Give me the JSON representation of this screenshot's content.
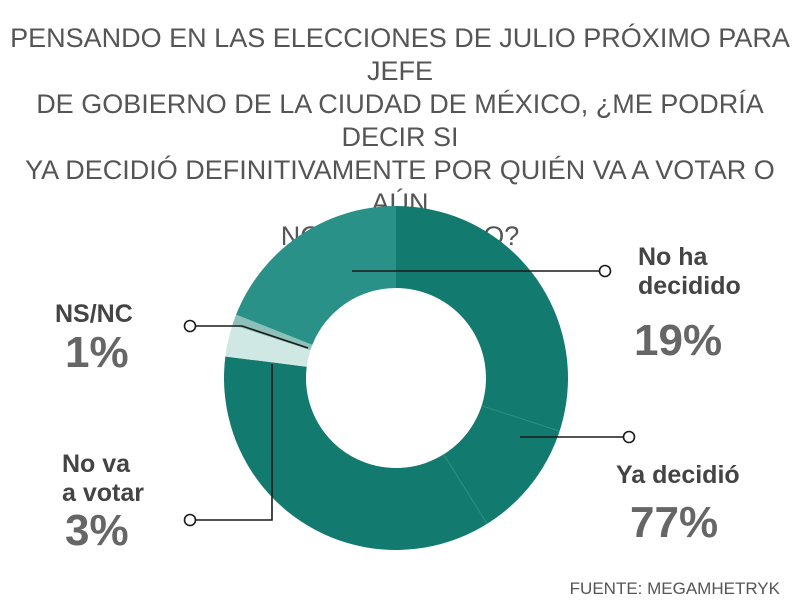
{
  "chart_data": {
    "type": "pie",
    "title": "PENSANDO EN LAS ELECCIONES DE JULIO PRÓXIMO PARA JEFE\nDE GOBIERNO DE LA CIUDAD DE MÉXICO, ¿ME PODRÍA DECIR SI\nYA DECIDIÓ DEFINITIVAMENTE POR QUIÉN VA A VOTAR O AÚN\nNO HA DECIDIDO?",
    "categories": [
      "Ya decidió",
      "No va\na votar",
      "NS/NC",
      "No ha\ndecidido"
    ],
    "values": [
      77,
      3,
      1,
      19
    ],
    "value_labels": [
      "77%",
      "3%",
      "1%",
      "19%"
    ],
    "colors": [
      "#137a70",
      "#cfe8e3",
      "#8cc0b8",
      "#2a9189"
    ],
    "legend": "none",
    "source": "FUENTE: MEGAMHETRYK"
  }
}
